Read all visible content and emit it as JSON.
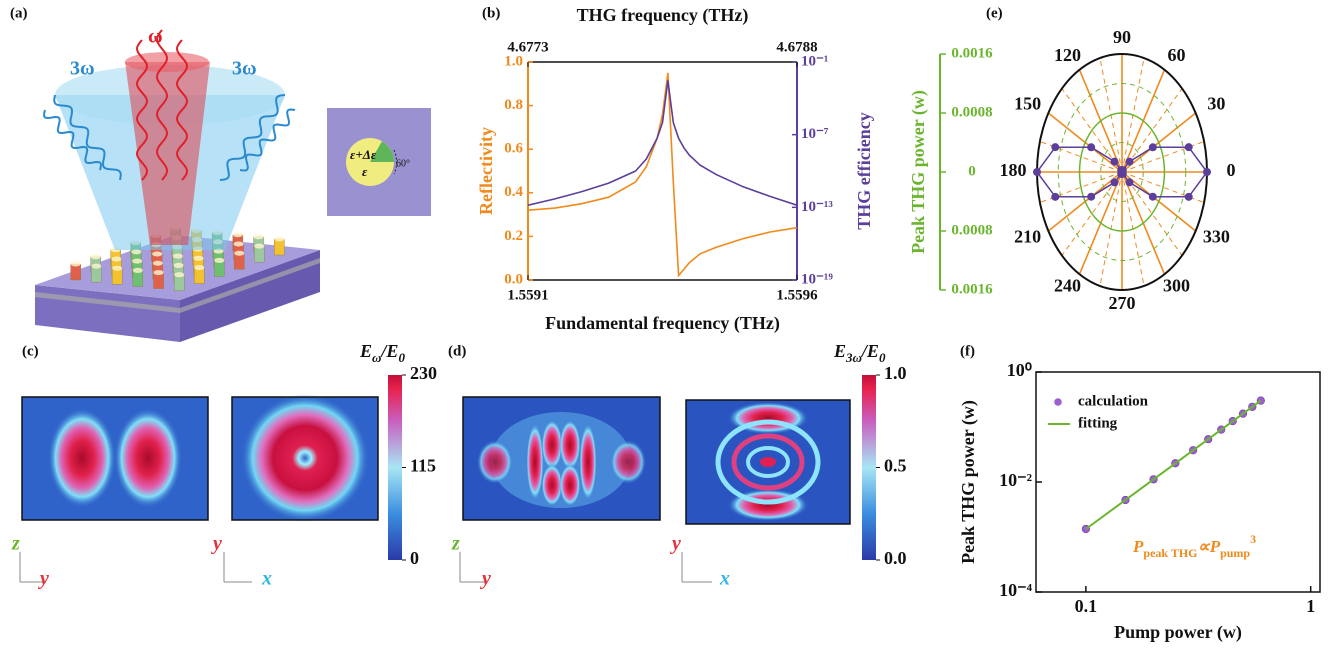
{
  "panel_labels": [
    "(a)",
    "(b)",
    "(c)",
    "(d)",
    "(e)",
    "(f)"
  ],
  "illustration": {
    "pump": "ω",
    "harmonics": [
      "3ω",
      "3ω"
    ],
    "inset": [
      "ε+Δε",
      "ε",
      "60°"
    ]
  },
  "field_maps": [
    {
      "axes": [
        "z",
        "y"
      ]
    },
    {
      "axes": [
        "y",
        "x"
      ]
    },
    {
      "axes": [
        "z",
        "y"
      ]
    },
    {
      "axes": [
        "y",
        "x"
      ]
    }
  ],
  "colorbars": [
    {
      "title": [
        "E",
        "ω",
        "/E",
        "0"
      ],
      "lim": [
        0,
        230
      ],
      "ticks": [
        0,
        115,
        230
      ]
    },
    {
      "title": [
        "E",
        "3ω",
        "/E",
        "0"
      ],
      "lim": [
        0,
        1
      ],
      "ticks": [
        {
          "value": 0,
          "label": "0.0"
        },
        0.5,
        {
          "value": 1,
          "label": "1.0"
        }
      ]
    }
  ],
  "chart_data": [
    {
      "type": "line",
      "title": "THG frequency (THz)",
      "xlabel": "Fundamental frequency (THz)",
      "ylabel": "Reflectivity",
      "y2label": "THG efficiency",
      "x": [
        1.5591,
        1.55915,
        1.5592,
        1.55925,
        1.5593,
        1.55932,
        1.55934,
        1.55935,
        1.55936,
        1.55937,
        1.55938,
        1.55939,
        1.5594,
        1.55942,
        1.55945,
        1.5595,
        1.55955,
        1.5596
      ],
      "xlim": [
        1.5591,
        1.5596
      ],
      "xticks": [
        1.5591,
        1.5596
      ],
      "x2lim": [
        4.6773,
        4.6788
      ],
      "x2ticks": [
        4.6773,
        4.6788
      ],
      "ylim": [
        0,
        1
      ],
      "yticks": [
        {
          "value": 0,
          "label": "0.0"
        },
        0.2,
        0.4,
        0.6,
        0.8,
        {
          "value": 1,
          "label": "1.0"
        }
      ],
      "y2lim": [
        1e-19,
        0.1
      ],
      "y2scale": "log",
      "y2ticks": [
        {
          "value": 1e-19,
          "label": "10⁻¹⁹"
        },
        {
          "value": 1e-13,
          "label": "10⁻¹³"
        },
        {
          "value": 1e-07,
          "label": "10⁻⁷"
        },
        {
          "value": 0.1,
          "label": "10⁻¹"
        }
      ],
      "series": [
        {
          "color": "#f08a1c",
          "values": [
            0.32,
            0.33,
            0.35,
            0.38,
            0.45,
            0.52,
            0.65,
            0.76,
            0.95,
            0.45,
            0.02,
            0.05,
            0.08,
            0.12,
            0.15,
            0.19,
            0.22,
            0.24
          ]
        },
        {
          "color": "#5b3f9a",
          "axis": "y2",
          "values": [
            1.5e-13,
            5e-13,
            2e-12,
            1e-11,
            1e-10,
            1e-09,
            5e-08,
            1e-06,
            0.003,
            1e-06,
            5e-08,
            8e-09,
            2e-09,
            3e-10,
            5e-11,
            5e-12,
            8e-13,
            1.5e-13
          ]
        }
      ]
    },
    {
      "type": "polar",
      "ylabel": "Peak THG power (w)",
      "theta": [
        0,
        15,
        30,
        45,
        60,
        75,
        90,
        105,
        120,
        135,
        150,
        165,
        180,
        195,
        210,
        225,
        240,
        255,
        270,
        285,
        300,
        315,
        330,
        345
      ],
      "r": [
        0.0016,
        0.0013,
        0.00067,
        0.0002,
        3e-05,
        0,
        0,
        0,
        3e-05,
        0.0002,
        0.00067,
        0.0013,
        0.0016,
        0.0013,
        0.00067,
        0.0002,
        3e-05,
        0,
        0,
        0,
        3e-05,
        0.0002,
        0.00067,
        0.0013
      ],
      "rlim": [
        0,
        0.0016
      ],
      "rticks": [
        0,
        0.0008,
        0.0016
      ],
      "thetaticks": [
        0,
        30,
        60,
        90,
        120,
        150,
        180,
        210,
        240,
        270,
        300,
        330
      ],
      "color": "#5b3f9a",
      "axis_color": "#6bb52e",
      "grid_color": "#f08a1c"
    },
    {
      "type": "scatter",
      "xlabel": "Pump power (w)",
      "ylabel": "Peak THG power (w)",
      "xscale": "log",
      "yscale": "log",
      "xlim": [
        0.06,
        1.1
      ],
      "xticks": [
        0.1,
        1
      ],
      "ylim": [
        0.0001,
        1
      ],
      "yticks": [
        {
          "value": 0.0001,
          "label": "10⁻⁴"
        },
        {
          "value": 0.01,
          "label": "10⁻²"
        },
        {
          "value": 1,
          "label": "10⁰"
        }
      ],
      "legend": "upper left",
      "annotation": [
        "P",
        "peak THG",
        "∝",
        "P",
        "pump",
        "3"
      ],
      "annotation_color": "#f08a1c",
      "series": [
        {
          "name": "calculation",
          "type": "scatter",
          "color": "#9b5fd0",
          "x": [
            0.1,
            0.15,
            0.2,
            0.25,
            0.3,
            0.35,
            0.4,
            0.45,
            0.5,
            0.55,
            0.6
          ],
          "values": [
            0.0014,
            0.0047,
            0.0112,
            0.0219,
            0.0378,
            0.06,
            0.0896,
            0.128,
            0.175,
            0.233,
            0.302
          ]
        },
        {
          "name": "fitting",
          "type": "line",
          "color": "#6bb52e",
          "x": [
            0.1,
            0.6
          ],
          "values": [
            0.0014,
            0.302
          ]
        }
      ]
    }
  ]
}
